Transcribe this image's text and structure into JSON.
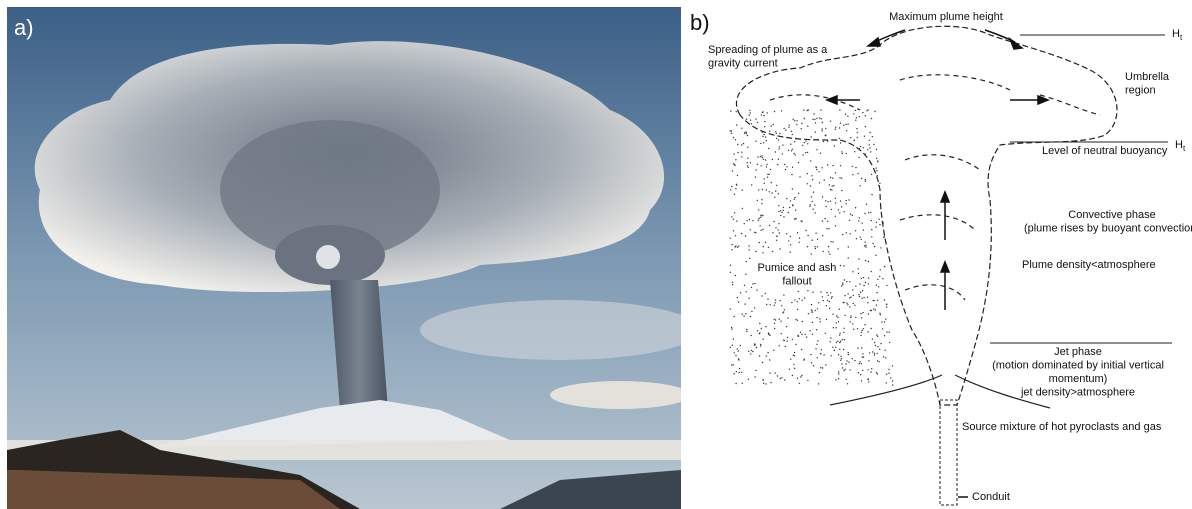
{
  "panel_a": {
    "label": "a)"
  },
  "panel_b": {
    "label": "b)",
    "labels": [
      {
        "lines": [
          "Maximum plume height"
        ]
      },
      {
        "lines": [
          "Spreading of plume as a",
          "gravity current"
        ]
      },
      {
        "lines": [
          "Umbrella",
          "region"
        ]
      },
      {
        "lines": [
          "Level of neutral buoyancy"
        ]
      },
      {
        "lines": [
          "Convective phase",
          "(plume rises by buoyant convection)"
        ]
      },
      {
        "lines": [
          "Plume density<atmosphere"
        ]
      },
      {
        "lines": [
          "Pumice and ash",
          "fallout"
        ]
      },
      {
        "lines": [
          "Jet phase",
          "(motion dominated by initial vertical",
          "momentum)",
          "jet density>atmosphere"
        ]
      },
      {
        "lines": [
          "Source mixture of hot pyroclasts and gas"
        ]
      },
      {
        "lines": [
          "Conduit"
        ]
      }
    ],
    "heights": [
      {
        "main": "H",
        "sub": "t"
      },
      {
        "main": "H",
        "sub": "t"
      }
    ]
  }
}
